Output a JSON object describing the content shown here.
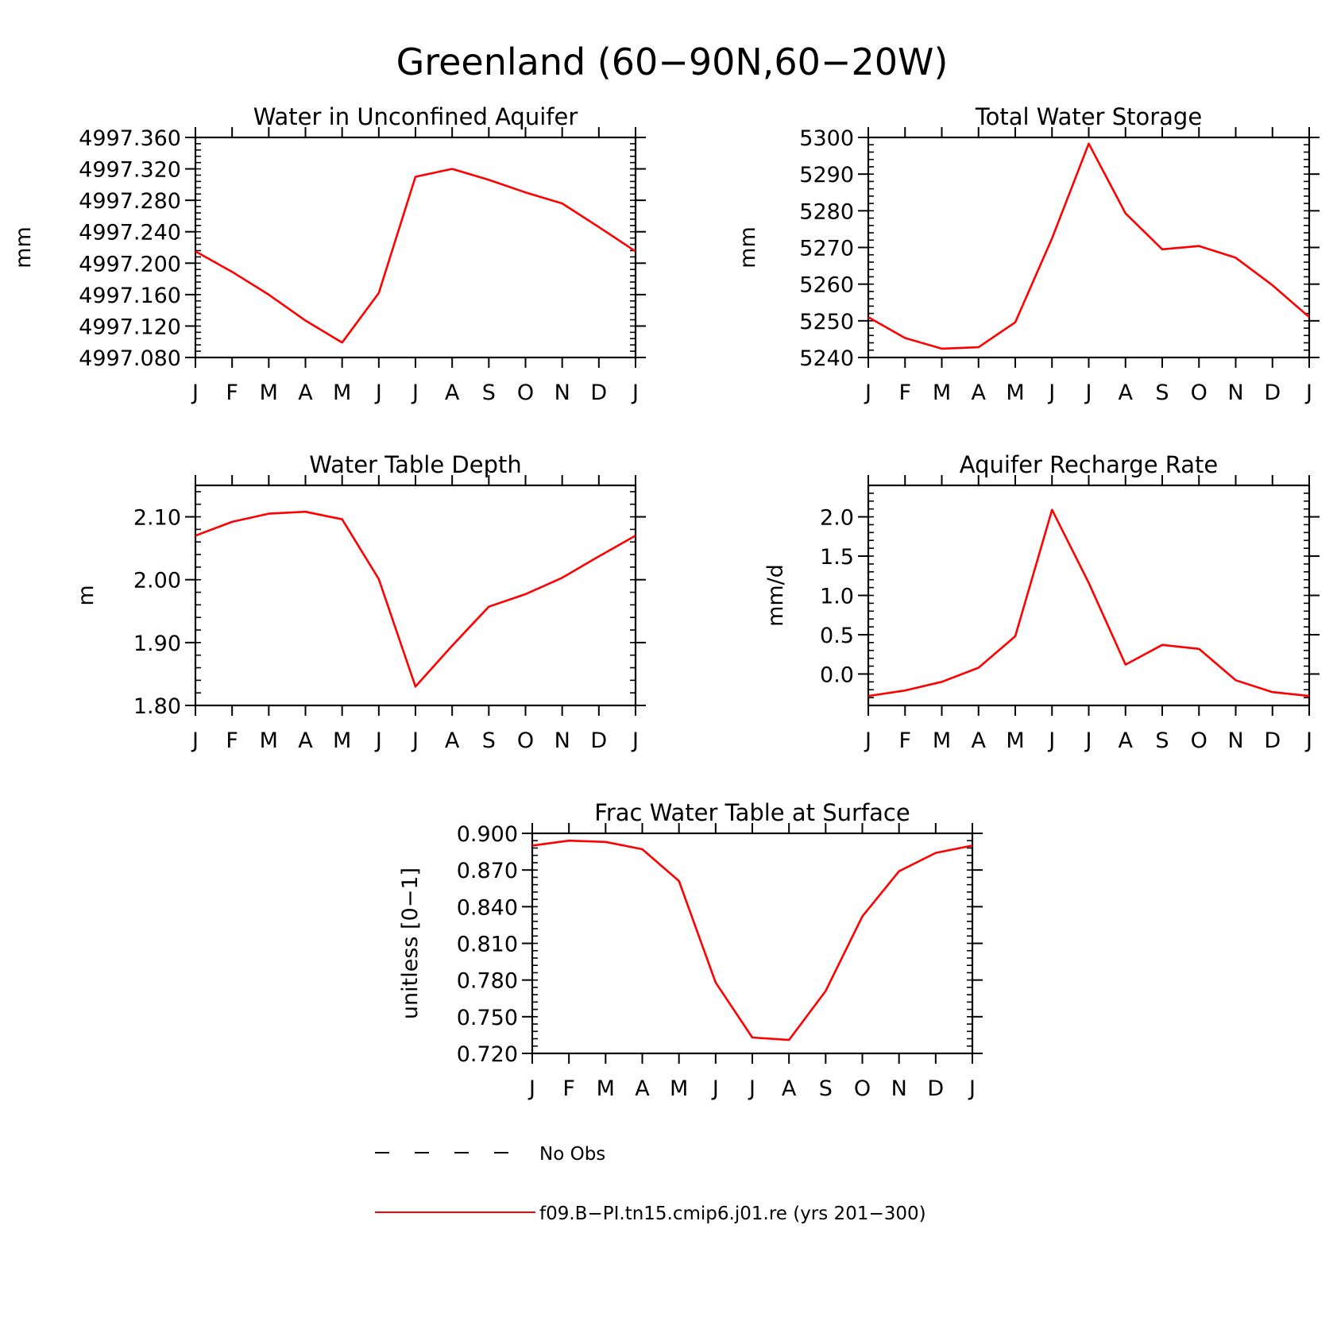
{
  "figure": {
    "title": "Greenland (60−90N,60−20W)"
  },
  "colors": {
    "series_line": "#ff0000",
    "axes": "#000000"
  },
  "chart_data": [
    {
      "type": "line",
      "title": "Water in Unconfined Aquifer",
      "xlabel": "",
      "ylabel": "mm",
      "ylim": [
        4997.08,
        4997.36
      ],
      "yticks": [
        4997.08,
        4997.12,
        4997.16,
        4997.2,
        4997.24,
        4997.28,
        4997.32,
        4997.36
      ],
      "ytick_labels": [
        "4997.080",
        "4997.120",
        "4997.160",
        "4997.200",
        "4997.240",
        "4997.280",
        "4997.320",
        "4997.360"
      ],
      "categories": [
        "J",
        "F",
        "M",
        "A",
        "M",
        "J",
        "J",
        "A",
        "S",
        "O",
        "N",
        "D",
        "J"
      ],
      "values": [
        4997.215,
        4997.189,
        4997.16,
        4997.127,
        4997.099,
        4997.162,
        4997.31,
        4997.32,
        4997.306,
        4997.29,
        4997.276,
        4997.246,
        4997.215
      ]
    },
    {
      "type": "line",
      "title": "Total Water Storage",
      "xlabel": "",
      "ylabel": "mm",
      "ylim": [
        5240,
        5300
      ],
      "yticks": [
        5240,
        5250,
        5260,
        5270,
        5280,
        5290,
        5300
      ],
      "ytick_labels": [
        "5240",
        "5250",
        "5260",
        "5270",
        "5280",
        "5290",
        "5300"
      ],
      "categories": [
        "J",
        "F",
        "M",
        "A",
        "M",
        "J",
        "J",
        "A",
        "S",
        "O",
        "N",
        "D",
        "J"
      ],
      "values": [
        5251,
        5245.3,
        5242.4,
        5242.8,
        5249.6,
        5272.5,
        5298.3,
        5279.3,
        5269.5,
        5270.4,
        5267.2,
        5259.7,
        5251
      ]
    },
    {
      "type": "line",
      "title": "Water Table Depth",
      "xlabel": "",
      "ylabel": "m",
      "ylim": [
        1.8,
        2.15
      ],
      "yticks": [
        1.8,
        1.9,
        2.0,
        2.1
      ],
      "ytick_labels": [
        "1.80",
        "1.90",
        "2.00",
        "2.10"
      ],
      "categories": [
        "J",
        "F",
        "M",
        "A",
        "M",
        "J",
        "J",
        "A",
        "S",
        "O",
        "N",
        "D",
        "J"
      ],
      "values": [
        2.07,
        2.092,
        2.105,
        2.108,
        2.096,
        2.001,
        1.83,
        1.895,
        1.957,
        1.977,
        2.003,
        2.037,
        2.07
      ]
    },
    {
      "type": "line",
      "title": "Aquifer Recharge Rate",
      "xlabel": "",
      "ylabel": "mm/d",
      "ylim": [
        -0.4,
        2.4
      ],
      "yticks": [
        0.0,
        0.5,
        1.0,
        1.5,
        2.0
      ],
      "ytick_labels": [
        "0.0",
        "0.5",
        "1.0",
        "1.5",
        "2.0"
      ],
      "categories": [
        "J",
        "F",
        "M",
        "A",
        "M",
        "J",
        "J",
        "A",
        "S",
        "O",
        "N",
        "D",
        "J"
      ],
      "values": [
        -0.28,
        -0.21,
        -0.1,
        0.08,
        0.48,
        2.09,
        1.16,
        0.12,
        0.37,
        0.32,
        -0.08,
        -0.23,
        -0.28
      ]
    },
    {
      "type": "line",
      "title": "Frac Water Table at Surface",
      "xlabel": "",
      "ylabel": "unitless [0−1]",
      "ylim": [
        0.72,
        0.9
      ],
      "yticks": [
        0.72,
        0.75,
        0.78,
        0.81,
        0.84,
        0.87,
        0.9
      ],
      "ytick_labels": [
        "0.720",
        "0.750",
        "0.780",
        "0.810",
        "0.840",
        "0.870",
        "0.900"
      ],
      "categories": [
        "J",
        "F",
        "M",
        "A",
        "M",
        "J",
        "J",
        "A",
        "S",
        "O",
        "N",
        "D",
        "J"
      ],
      "values": [
        0.89,
        0.894,
        0.893,
        0.887,
        0.861,
        0.778,
        0.733,
        0.731,
        0.771,
        0.832,
        0.869,
        0.884,
        0.89
      ]
    }
  ],
  "legend": {
    "items": [
      {
        "label": "No Obs",
        "style": "dashed",
        "color": "#000000"
      },
      {
        "label": "f09.B−PI.tn15.cmip6.j01.re (yrs 201−300)",
        "style": "solid",
        "color": "#ff0000"
      }
    ]
  }
}
